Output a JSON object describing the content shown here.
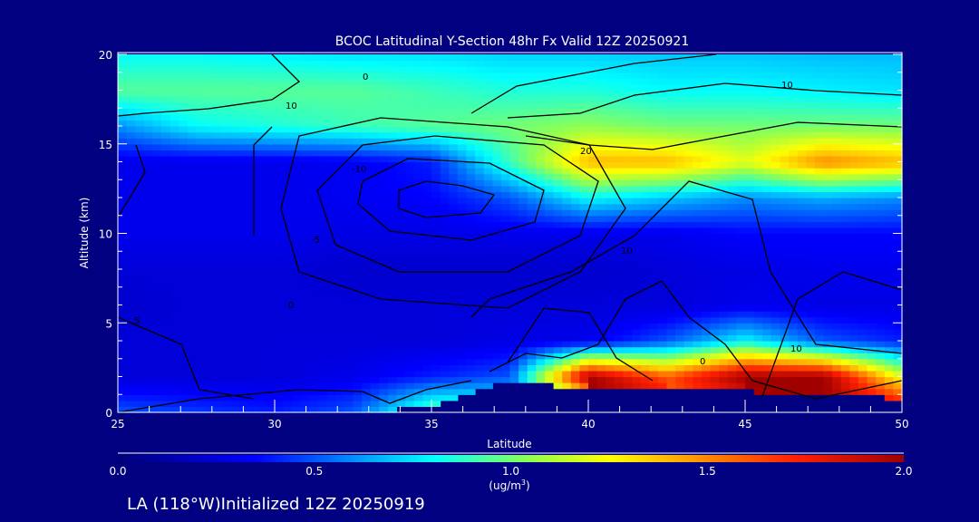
{
  "chart_data": {
    "type": "heatmap",
    "title": "BCOC Latitudinal Y-Section 48hr  Fx Valid 12Z 20250921",
    "xlabel": "Latitude",
    "ylabel": "Altitude (km)",
    "xlim": [
      25,
      50
    ],
    "ylim": [
      0,
      20
    ],
    "x_ticks": [
      "25",
      "30",
      "35",
      "40",
      "45",
      "50"
    ],
    "y_ticks": [
      "0",
      "5",
      "10",
      "15",
      "20"
    ],
    "x": [
      25,
      27.5,
      30,
      32.5,
      35,
      37.5,
      40,
      42.5,
      45,
      47.5,
      50
    ],
    "y": [
      0,
      2,
      4,
      6,
      8,
      10,
      12,
      14,
      16,
      18,
      20
    ],
    "values": [
      [
        0.5,
        0.45,
        0.4,
        0.5,
        1.0,
        null,
        null,
        null,
        null,
        null,
        null
      ],
      [
        0.25,
        0.25,
        0.25,
        0.3,
        0.4,
        0.5,
        2.0,
        1.6,
        2.0,
        2.0,
        1.2
      ],
      [
        0.25,
        0.25,
        0.25,
        0.25,
        0.25,
        0.28,
        0.3,
        0.5,
        0.8,
        0.5,
        0.4
      ],
      [
        0.22,
        0.25,
        0.25,
        0.25,
        0.25,
        0.25,
        0.25,
        0.25,
        0.3,
        0.28,
        0.28
      ],
      [
        0.25,
        0.25,
        0.25,
        0.22,
        0.22,
        0.22,
        0.22,
        0.25,
        0.28,
        0.3,
        0.3
      ],
      [
        0.3,
        0.3,
        0.3,
        0.28,
        0.28,
        0.3,
        0.3,
        0.3,
        0.35,
        0.35,
        0.35
      ],
      [
        0.3,
        0.3,
        0.3,
        0.32,
        0.35,
        0.5,
        0.8,
        0.7,
        0.6,
        0.65,
        0.6
      ],
      [
        0.3,
        0.3,
        0.3,
        0.32,
        0.4,
        0.9,
        1.4,
        1.4,
        1.2,
        1.5,
        1.4
      ],
      [
        0.6,
        0.8,
        0.85,
        0.9,
        0.95,
        1.0,
        1.05,
        1.0,
        1.0,
        1.0,
        1.0
      ],
      [
        0.95,
        0.95,
        0.95,
        0.95,
        0.9,
        0.85,
        0.85,
        0.8,
        0.8,
        0.78,
        0.75
      ],
      [
        0.8,
        0.8,
        0.78,
        0.75,
        0.75,
        0.72,
        0.72,
        0.7,
        0.7,
        0.68,
        0.68
      ]
    ],
    "terrain_km": [
      0,
      0,
      0,
      0,
      0.3,
      1.8,
      1.3,
      1.2,
      1.2,
      1.0,
      0.8
    ],
    "contour_labels": [
      "0",
      "10",
      "20",
      "10",
      "-10",
      "-5",
      "0",
      "10",
      "0",
      "10",
      "5"
    ],
    "colorbar": {
      "ticks": [
        "0.0",
        "0.5",
        "1.0",
        "1.5",
        "2.0"
      ],
      "range": [
        0,
        2
      ],
      "units_label": "(ug/m",
      "units_sup": "3",
      "units_close": ")"
    },
    "colors": [
      "#00007a",
      "#0000ff",
      "#00c8ff",
      "#00ffff",
      "#90ff50",
      "#ffff00",
      "#ffa000",
      "#ff2000",
      "#a00000"
    ],
    "background": "#000080"
  },
  "footer": "LA (118°W)Initialized 12Z 20250919"
}
